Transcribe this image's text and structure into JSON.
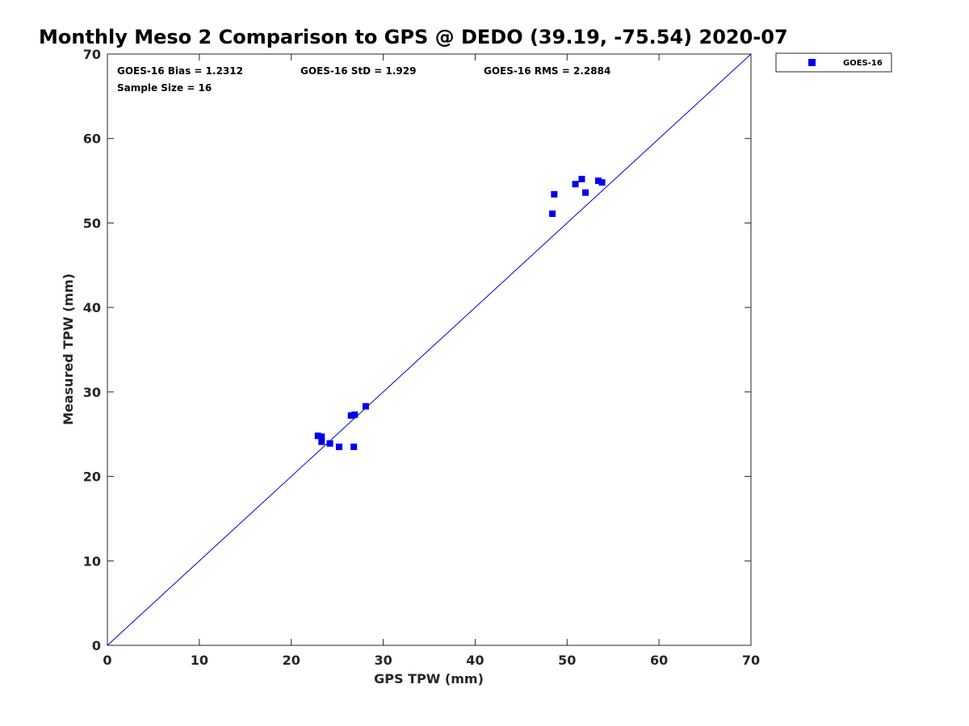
{
  "chart_data": {
    "type": "scatter",
    "title": "Monthly Meso 2 Comparison to GPS @ DEDO (39.19, -75.54) 2020-07",
    "xlabel": "GPS TPW (mm)",
    "ylabel": "Measured TPW (mm)",
    "xlim": [
      0,
      70
    ],
    "ylim": [
      0,
      70
    ],
    "xticks": [
      "0",
      "10",
      "20",
      "30",
      "40",
      "50",
      "60",
      "70"
    ],
    "yticks": [
      "0",
      "10",
      "20",
      "30",
      "40",
      "50",
      "60",
      "70"
    ],
    "grid": false,
    "legend_position": "outside-top-right",
    "stats": {
      "bias": "GOES-16 Bias = 1.2312",
      "std": "GOES-16 StD = 1.929",
      "rms": "GOES-16 RMS = 2.2884",
      "sample": "Sample Size = 16"
    },
    "reference_line": {
      "from": [
        0,
        0
      ],
      "to": [
        70,
        70
      ],
      "color": "#0000cc"
    },
    "series": [
      {
        "name": "GOES-16",
        "color": "#0000ee",
        "marker": "square",
        "points": [
          {
            "x": 22.9,
            "y": 24.8
          },
          {
            "x": 23.3,
            "y": 24.7
          },
          {
            "x": 23.3,
            "y": 24.1
          },
          {
            "x": 24.2,
            "y": 23.9
          },
          {
            "x": 25.2,
            "y": 23.5
          },
          {
            "x": 26.8,
            "y": 23.5
          },
          {
            "x": 26.5,
            "y": 27.2
          },
          {
            "x": 26.9,
            "y": 27.3
          },
          {
            "x": 28.1,
            "y": 28.3
          },
          {
            "x": 48.4,
            "y": 51.1
          },
          {
            "x": 48.6,
            "y": 53.4
          },
          {
            "x": 50.9,
            "y": 54.6
          },
          {
            "x": 51.6,
            "y": 55.2
          },
          {
            "x": 52.0,
            "y": 53.6
          },
          {
            "x": 53.4,
            "y": 55.0
          },
          {
            "x": 53.8,
            "y": 54.8
          }
        ]
      }
    ]
  }
}
